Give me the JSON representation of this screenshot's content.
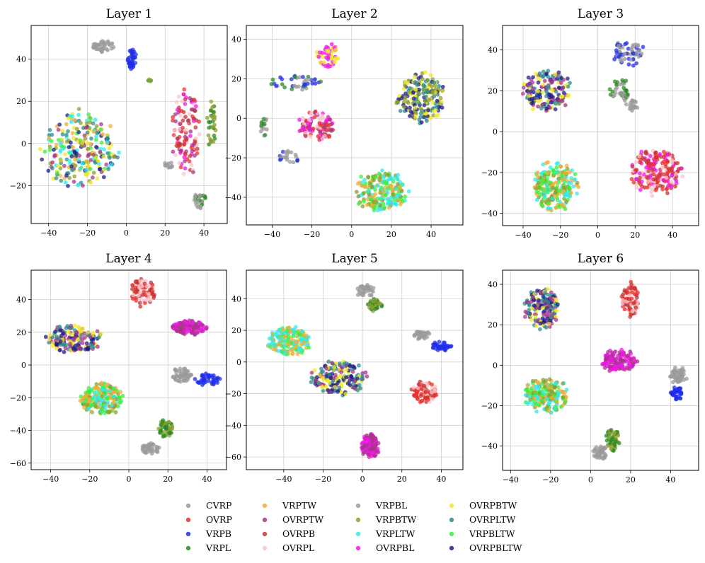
{
  "chart_data": [
    {
      "type": "scatter",
      "title": "Layer 1",
      "xlim": [
        -49,
        52
      ],
      "ylim": [
        -38,
        56
      ],
      "xticks": [
        -40,
        -20,
        0,
        20,
        40
      ],
      "yticks": [
        -20,
        0,
        20,
        40
      ],
      "grid": true,
      "clusters": [
        {
          "x": -11,
          "y": 46,
          "rx": 7,
          "ry": 3,
          "n": 40,
          "c": [
            "CVRP",
            "VRPBL"
          ]
        },
        {
          "x": 3,
          "y": 40,
          "rx": 3,
          "ry": 5,
          "n": 35,
          "c": [
            "VRPB"
          ]
        },
        {
          "x": 12,
          "y": 30,
          "rx": 1,
          "ry": 1,
          "n": 4,
          "c": [
            "VRPBTW",
            "VRPL"
          ]
        },
        {
          "x": -24,
          "y": -3,
          "rx": 21,
          "ry": 20,
          "n": 260,
          "c": [
            "VRPLTW",
            "VRPBLTW",
            "OVRPBLTW",
            "OVRPLTW",
            "VRPTW",
            "VRPBTW",
            "OVRPBTW",
            "OVRPTW"
          ]
        },
        {
          "x": 31,
          "y": 5,
          "rx": 8,
          "ry": 23,
          "n": 120,
          "c": [
            "OVRP",
            "OVRPB",
            "OVRPBL",
            "OVRPL",
            "OVRPTW"
          ]
        },
        {
          "x": 44,
          "y": 8,
          "rx": 2.5,
          "ry": 13,
          "n": 30,
          "c": [
            "VRPL",
            "VRPBTW"
          ]
        },
        {
          "x": 22,
          "y": -10,
          "rx": 3,
          "ry": 2,
          "n": 12,
          "c": [
            "CVRP",
            "VRPBL"
          ]
        },
        {
          "x": 38,
          "y": -27,
          "rx": 4,
          "ry": 4,
          "n": 30,
          "c": [
            "VRPL",
            "VRPBL"
          ]
        }
      ]
    },
    {
      "type": "scatter",
      "title": "Layer 2",
      "xlim": [
        -53,
        56
      ],
      "ylim": [
        -54,
        47
      ],
      "xticks": [
        -40,
        -20,
        0,
        20,
        40
      ],
      "yticks": [
        -40,
        -20,
        0,
        20,
        40
      ],
      "grid": true,
      "clusters": [
        {
          "x": -12,
          "y": 32,
          "rx": 6,
          "ry": 7,
          "n": 50,
          "c": [
            "OVRPBL",
            "OVRPBTW"
          ]
        },
        {
          "x": -28,
          "y": 18,
          "rx": 14,
          "ry": 4,
          "n": 40,
          "c": [
            "VRPB",
            "VRPL",
            "CVRP"
          ]
        },
        {
          "x": -18,
          "y": -4,
          "rx": 10,
          "ry": 8,
          "n": 110,
          "c": [
            "OVRP",
            "OVRPB",
            "OVRPL",
            "OVRPBL",
            "OVRPTW"
          ]
        },
        {
          "x": -44,
          "y": -5,
          "rx": 2,
          "ry": 6,
          "n": 15,
          "c": [
            "CVRP",
            "VRPL"
          ]
        },
        {
          "x": -32,
          "y": -20,
          "rx": 6,
          "ry": 4,
          "n": 20,
          "c": [
            "CVRP",
            "VRPB",
            "VRPBL"
          ]
        },
        {
          "x": 35,
          "y": 10,
          "rx": 13,
          "ry": 14,
          "n": 200,
          "c": [
            "OVRPBLTW",
            "OVRPLTW",
            "OVRPBTW",
            "VRPBTW"
          ]
        },
        {
          "x": 15,
          "y": -37,
          "rx": 15,
          "ry": 11,
          "n": 200,
          "c": [
            "VRPLTW",
            "VRPBLTW",
            "VRPTW",
            "VRPBTW"
          ]
        }
      ]
    },
    {
      "type": "scatter",
      "title": "Layer 3",
      "xlim": [
        -51,
        54
      ],
      "ylim": [
        -46,
        52
      ],
      "xticks": [
        -40,
        -20,
        0,
        20,
        40
      ],
      "yticks": [
        -40,
        -20,
        0,
        20,
        40
      ],
      "grid": true,
      "clusters": [
        {
          "x": -27,
          "y": 20,
          "rx": 14,
          "ry": 12,
          "n": 170,
          "c": [
            "OVRPBLTW",
            "OVRPLTW",
            "OVRPBTW",
            "OVRPTW"
          ]
        },
        {
          "x": 16,
          "y": 38,
          "rx": 10,
          "ry": 7,
          "n": 60,
          "c": [
            "VRPB",
            "CVRP"
          ]
        },
        {
          "x": 12,
          "y": 20,
          "rx": 6,
          "ry": 6,
          "n": 40,
          "c": [
            "VRPL",
            "VRPBL"
          ]
        },
        {
          "x": 18,
          "y": 13,
          "rx": 4,
          "ry": 3,
          "n": 20,
          "c": [
            "CVRP",
            "VRPBL"
          ]
        },
        {
          "x": 31,
          "y": -20,
          "rx": 15,
          "ry": 12,
          "n": 210,
          "c": [
            "OVRP",
            "OVRPB",
            "OVRPBL",
            "OVRPL"
          ]
        },
        {
          "x": -23,
          "y": -27,
          "rx": 13,
          "ry": 13,
          "n": 220,
          "c": [
            "VRPLTW",
            "VRPBLTW",
            "VRPTW",
            "VRPBTW"
          ]
        }
      ]
    },
    {
      "type": "scatter",
      "title": "Layer 4",
      "xlim": [
        -50,
        50
      ],
      "ylim": [
        -64,
        58
      ],
      "xticks": [
        -40,
        -20,
        0,
        20,
        40
      ],
      "yticks": [
        -60,
        -40,
        -20,
        0,
        20,
        40
      ],
      "grid": true,
      "clusters": [
        {
          "x": -28,
          "y": 16,
          "rx": 16,
          "ry": 9,
          "n": 170,
          "c": [
            "OVRPBLTW",
            "OVRPLTW",
            "OVRPBTW",
            "OVRPTW"
          ]
        },
        {
          "x": 7,
          "y": 44,
          "rx": 7,
          "ry": 9,
          "n": 90,
          "c": [
            "OVRPL",
            "OVRPB",
            "OVRP"
          ]
        },
        {
          "x": 31,
          "y": 23,
          "rx": 10,
          "ry": 5,
          "n": 120,
          "c": [
            "OVRPBL",
            "OVRPTW"
          ]
        },
        {
          "x": 27,
          "y": -6,
          "rx": 6,
          "ry": 5,
          "n": 50,
          "c": [
            "CVRP",
            "VRPBL"
          ]
        },
        {
          "x": 40,
          "y": -9,
          "rx": 7,
          "ry": 4,
          "n": 40,
          "c": [
            "VRPB"
          ]
        },
        {
          "x": -14,
          "y": -21,
          "rx": 12,
          "ry": 11,
          "n": 200,
          "c": [
            "VRPLTW",
            "VRPBLTW",
            "VRPTW",
            "VRPBTW"
          ]
        },
        {
          "x": 19,
          "y": -39,
          "rx": 4,
          "ry": 6,
          "n": 50,
          "c": [
            "VRPL",
            "VRPBTW"
          ]
        },
        {
          "x": 11,
          "y": -51,
          "rx": 5,
          "ry": 4,
          "n": 40,
          "c": [
            "CVRP",
            "VRPBL"
          ]
        }
      ]
    },
    {
      "type": "scatter",
      "title": "Layer 5",
      "xlim": [
        -59,
        51
      ],
      "ylim": [
        -68,
        58
      ],
      "xticks": [
        -40,
        -20,
        0,
        20,
        40
      ],
      "yticks": [
        -60,
        -40,
        -20,
        0,
        20,
        40
      ],
      "grid": true,
      "clusters": [
        {
          "x": 2,
          "y": 45,
          "rx": 6,
          "ry": 4,
          "n": 40,
          "c": [
            "CVRP",
            "VRPBL"
          ]
        },
        {
          "x": 6,
          "y": 36,
          "rx": 4,
          "ry": 4,
          "n": 40,
          "c": [
            "VRPL",
            "VRPBTW"
          ]
        },
        {
          "x": -37,
          "y": 13,
          "rx": 12,
          "ry": 10,
          "n": 180,
          "c": [
            "VRPLTW",
            "VRPBLTW",
            "VRPTW"
          ]
        },
        {
          "x": -12,
          "y": -10,
          "rx": 15,
          "ry": 12,
          "n": 180,
          "c": [
            "OVRPBLTW",
            "OVRPLTW",
            "OVRPBTW",
            "OVRPTW"
          ]
        },
        {
          "x": 30,
          "y": 17,
          "rx": 5,
          "ry": 3,
          "n": 40,
          "c": [
            "CVRP",
            "VRPBL"
          ]
        },
        {
          "x": 40,
          "y": 10,
          "rx": 6,
          "ry": 3,
          "n": 40,
          "c": [
            "VRPB"
          ]
        },
        {
          "x": 31,
          "y": -19,
          "rx": 7,
          "ry": 8,
          "n": 90,
          "c": [
            "OVRPL",
            "OVRPB",
            "OVRP"
          ]
        },
        {
          "x": 4,
          "y": -53,
          "rx": 5,
          "ry": 8,
          "n": 140,
          "c": [
            "OVRPBL",
            "OVRPTW"
          ]
        }
      ]
    },
    {
      "type": "scatter",
      "title": "Layer 6",
      "xlim": [
        -44,
        54
      ],
      "ylim": [
        -52,
        47
      ],
      "xticks": [
        -40,
        -20,
        0,
        20,
        40
      ],
      "yticks": [
        -40,
        -20,
        0,
        20,
        40
      ],
      "grid": true,
      "clusters": [
        {
          "x": -25,
          "y": 28,
          "rx": 10,
          "ry": 11,
          "n": 170,
          "c": [
            "OVRPBLTW",
            "OVRPLTW",
            "OVRPBTW",
            "OVRPTW"
          ]
        },
        {
          "x": 20,
          "y": 32,
          "rx": 5,
          "ry": 10,
          "n": 90,
          "c": [
            "OVRPL",
            "OVRPB",
            "OVRP"
          ]
        },
        {
          "x": 14,
          "y": 2,
          "rx": 10,
          "ry": 6,
          "n": 140,
          "c": [
            "OVRPBL",
            "OVRPTW"
          ]
        },
        {
          "x": 44,
          "y": -5,
          "rx": 5,
          "ry": 5,
          "n": 50,
          "c": [
            "CVRP",
            "VRPBL"
          ]
        },
        {
          "x": 43,
          "y": -14,
          "rx": 3,
          "ry": 4,
          "n": 35,
          "c": [
            "VRPB"
          ]
        },
        {
          "x": -22,
          "y": -15,
          "rx": 12,
          "ry": 10,
          "n": 200,
          "c": [
            "VRPLTW",
            "VRPBLTW",
            "VRPTW",
            "VRPBTW"
          ]
        },
        {
          "x": 11,
          "y": -37,
          "rx": 4,
          "ry": 6,
          "n": 50,
          "c": [
            "VRPL",
            "VRPBTW"
          ]
        },
        {
          "x": 5,
          "y": -43,
          "rx": 4,
          "ry": 4,
          "n": 40,
          "c": [
            "CVRP",
            "VRPBL"
          ]
        }
      ]
    }
  ],
  "legend": {
    "placement": "bottom-center",
    "columns": 4,
    "entries": [
      {
        "name": "CVRP",
        "color": "#9a9a9a"
      },
      {
        "name": "OVRP",
        "color": "#e8322d"
      },
      {
        "name": "VRPB",
        "color": "#1f2de8"
      },
      {
        "name": "VRPL",
        "color": "#2a8a22"
      },
      {
        "name": "VRPTW",
        "color": "#f2ad36"
      },
      {
        "name": "OVRPTW",
        "color": "#a8368a"
      },
      {
        "name": "OVRPB",
        "color": "#c43434"
      },
      {
        "name": "OVRPL",
        "color": "#f7c6cc"
      },
      {
        "name": "VRPBL",
        "color": "#9c9c9c"
      },
      {
        "name": "VRPBTW",
        "color": "#8e9e2c"
      },
      {
        "name": "VRPLTW",
        "color": "#33eaee"
      },
      {
        "name": "OVRPBL",
        "color": "#f016e8"
      },
      {
        "name": "OVRPBTW",
        "color": "#f2e72a"
      },
      {
        "name": "OVRPLTW",
        "color": "#2e8b90"
      },
      {
        "name": "VRPBLTW",
        "color": "#3cee3c"
      },
      {
        "name": "OVRPBLTW",
        "color": "#1e1e85"
      }
    ]
  }
}
